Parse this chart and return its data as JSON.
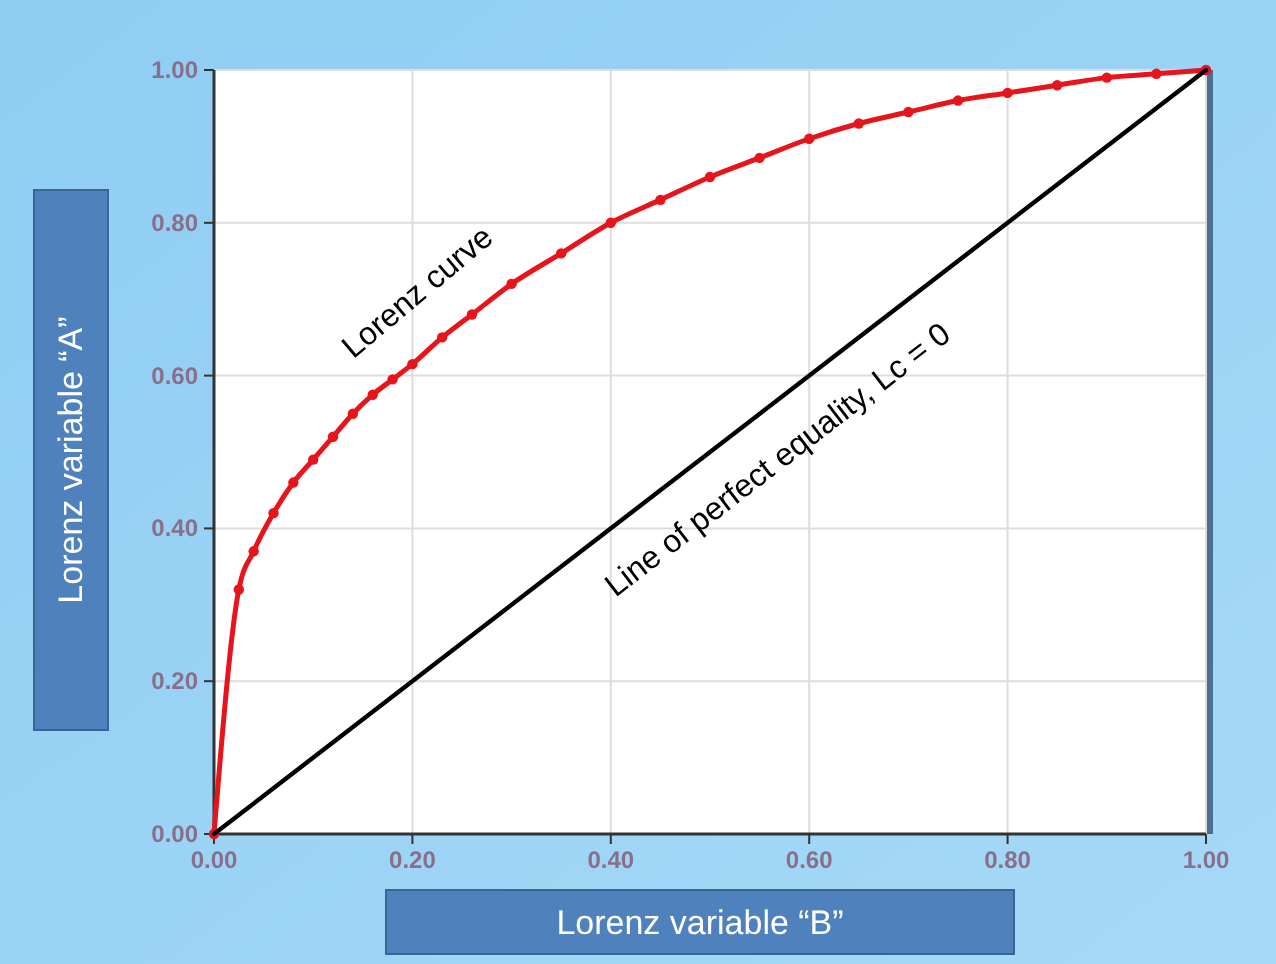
{
  "chart_data": {
    "type": "line",
    "xlabel": "Lorenz variable “B”",
    "ylabel": "Lorenz variable “A”",
    "xlim": [
      0,
      1
    ],
    "ylim": [
      0,
      1
    ],
    "xticks": [
      {
        "value": 0,
        "label": "0.00"
      },
      {
        "value": 0.2,
        "label": "0.20"
      },
      {
        "value": 0.4,
        "label": "0.40"
      },
      {
        "value": 0.6,
        "label": "0.60"
      },
      {
        "value": 0.8,
        "label": "0.80"
      },
      {
        "value": 1,
        "label": "1.00"
      }
    ],
    "yticks": [
      {
        "value": 0,
        "label": "0.00"
      },
      {
        "value": 0.2,
        "label": "0.20"
      },
      {
        "value": 0.4,
        "label": "0.40"
      },
      {
        "value": 0.6,
        "label": "0.60"
      },
      {
        "value": 0.8,
        "label": "0.80"
      },
      {
        "value": 1,
        "label": "1.00"
      }
    ],
    "grid": true,
    "series": [
      {
        "color": "#e8141c",
        "marker": "circle",
        "x": [
          0,
          0.025,
          0.04,
          0.06,
          0.08,
          0.1,
          0.12,
          0.14,
          0.16,
          0.18,
          0.2,
          0.23,
          0.26,
          0.3,
          0.35,
          0.4,
          0.45,
          0.5,
          0.55,
          0.6,
          0.65,
          0.7,
          0.75,
          0.8,
          0.85,
          0.9,
          0.95,
          1
        ],
        "values": [
          0,
          0.32,
          0.37,
          0.42,
          0.46,
          0.49,
          0.52,
          0.55,
          0.575,
          0.595,
          0.615,
          0.65,
          0.68,
          0.72,
          0.76,
          0.8,
          0.83,
          0.86,
          0.885,
          0.91,
          0.93,
          0.945,
          0.96,
          0.97,
          0.98,
          0.99,
          0.995,
          1
        ]
      },
      {
        "color": "#000000",
        "marker": "none",
        "x": [
          0,
          1
        ],
        "values": [
          0,
          1
        ]
      }
    ],
    "annotations": [
      "Lorenz curve",
      "Line of perfect equality, Lc = 0"
    ]
  }
}
